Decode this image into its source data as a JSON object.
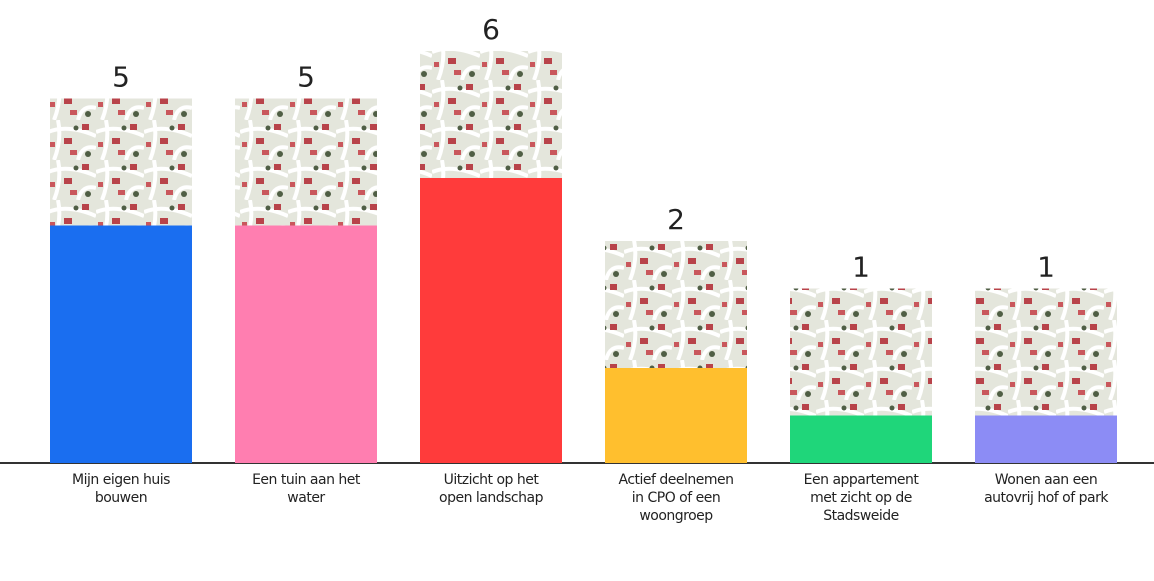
{
  "chart_data": {
    "type": "bar",
    "categories": [
      "Mijn eigen huis bouwen",
      "Een tuin aan het water",
      "Uitzicht op het open landschap",
      "Actief deelnemen in CPO of een woongroep",
      "Een appartement met zicht op de Stadsweide",
      "Wonen aan een autovrij hof of park"
    ],
    "values": [
      5,
      5,
      6,
      2,
      1,
      1
    ],
    "colors": [
      "#1a6ef0",
      "#ff7eb0",
      "#ff3b3b",
      "#ffbf2e",
      "#1fd67a",
      "#8c8cf5"
    ]
  }
}
